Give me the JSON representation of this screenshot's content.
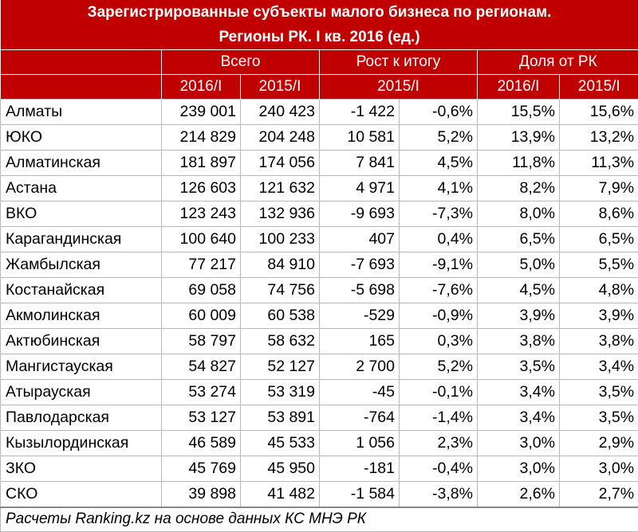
{
  "title_line1": "Зарегистрированные субъекты малого бизнеса по регионам.",
  "title_line2": "Регионы РК. I кв. 2016 (ед.)",
  "groups": {
    "total": "Всего",
    "growth": "Рост к итогу",
    "share": "Доля от РК"
  },
  "subheaders": {
    "total_2016": "2016/I",
    "total_2015": "2015/I",
    "growth_2015": "2015/I",
    "share_2016": "2016/I",
    "share_2015": "2015/I"
  },
  "rows": [
    {
      "region": "Алматы",
      "v2016": "239 001",
      "v2015": "240 423",
      "diff": "-1 422",
      "pct": "-0,6%",
      "share2016": "15,5%",
      "share2015": "15,6%"
    },
    {
      "region": "ЮКО",
      "v2016": "214 829",
      "v2015": "204 248",
      "diff": "10 581",
      "pct": "5,2%",
      "share2016": "13,9%",
      "share2015": "13,2%"
    },
    {
      "region": "Алматинская",
      "v2016": "181 897",
      "v2015": "174 056",
      "diff": "7 841",
      "pct": "4,5%",
      "share2016": "11,8%",
      "share2015": "11,3%"
    },
    {
      "region": "Астана",
      "v2016": "126 603",
      "v2015": "121 632",
      "diff": "4 971",
      "pct": "4,1%",
      "share2016": "8,2%",
      "share2015": "7,9%"
    },
    {
      "region": "ВКО",
      "v2016": "123 243",
      "v2015": "132 936",
      "diff": "-9 693",
      "pct": "-7,3%",
      "share2016": "8,0%",
      "share2015": "8,6%"
    },
    {
      "region": "Карагандинская",
      "v2016": "100 640",
      "v2015": "100 233",
      "diff": "407",
      "pct": "0,4%",
      "share2016": "6,5%",
      "share2015": "6,5%"
    },
    {
      "region": "Жамбылская",
      "v2016": "77 217",
      "v2015": "84 910",
      "diff": "-7 693",
      "pct": "-9,1%",
      "share2016": "5,0%",
      "share2015": "5,5%"
    },
    {
      "region": "Костанайская",
      "v2016": "69 058",
      "v2015": "74 756",
      "diff": "-5 698",
      "pct": "-7,6%",
      "share2016": "4,5%",
      "share2015": "4,8%"
    },
    {
      "region": "Акмолинская",
      "v2016": "60 009",
      "v2015": "60 538",
      "diff": "-529",
      "pct": "-0,9%",
      "share2016": "3,9%",
      "share2015": "3,9%"
    },
    {
      "region": "Актюбинская",
      "v2016": "58 797",
      "v2015": "58 632",
      "diff": "165",
      "pct": "0,3%",
      "share2016": "3,8%",
      "share2015": "3,8%"
    },
    {
      "region": "Мангистауская",
      "v2016": "54 827",
      "v2015": "52 127",
      "diff": "2 700",
      "pct": "5,2%",
      "share2016": "3,5%",
      "share2015": "3,4%"
    },
    {
      "region": "Атырауская",
      "v2016": "53 274",
      "v2015": "53 319",
      "diff": "-45",
      "pct": "-0,1%",
      "share2016": "3,4%",
      "share2015": "3,5%"
    },
    {
      "region": "Павлодарская",
      "v2016": "53 127",
      "v2015": "53 891",
      "diff": "-764",
      "pct": "-1,4%",
      "share2016": "3,4%",
      "share2015": "3,5%"
    },
    {
      "region": "Кызылординская",
      "v2016": "46 589",
      "v2015": "45 533",
      "diff": "1 056",
      "pct": "2,3%",
      "share2016": "3,0%",
      "share2015": "2,9%"
    },
    {
      "region": "ЗКО",
      "v2016": "45 769",
      "v2015": "45 950",
      "diff": "-181",
      "pct": "-0,4%",
      "share2016": "3,0%",
      "share2015": "3,0%"
    },
    {
      "region": "СКО",
      "v2016": "39 898",
      "v2015": "41 482",
      "diff": "-1 584",
      "pct": "-3,8%",
      "share2016": "2,6%",
      "share2015": "2,7%"
    }
  ],
  "source": "Расчеты Ranking.kz на основе данных КС МНЭ РК",
  "colors": {
    "header_bg": "#c00000",
    "header_text": "#ffffff",
    "grid": "#b8b8b8"
  }
}
